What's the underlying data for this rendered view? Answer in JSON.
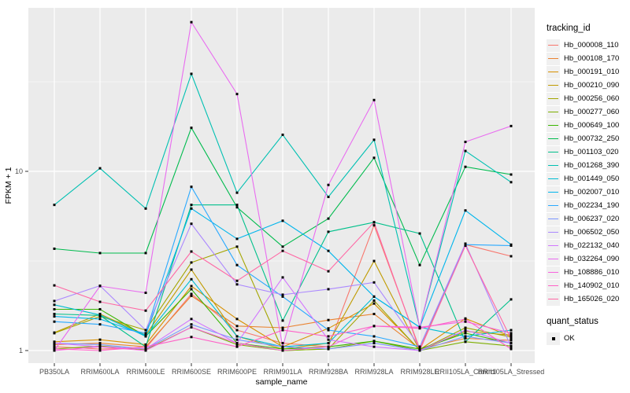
{
  "figure": {
    "legend": {
      "tracking_title": "tracking_id",
      "quant_title": "quant_status",
      "quant_items": [
        {
          "label": "OK"
        }
      ]
    },
    "colors": {
      "panel_bg": "#EBEBEB",
      "grid": "#FFFFFF",
      "point": "#000000",
      "tick_text": "#4D4D4D",
      "tick_mark": "#333333"
    }
  },
  "chart_data": {
    "type": "line",
    "title": "",
    "xlabel": "sample_name",
    "ylabel": "FPKM + 1",
    "y_scale": "log10",
    "ylim": [
      0.85,
      81
    ],
    "y_ticks": [
      1,
      10
    ],
    "y_minor_ticks": [
      3.162,
      31.62
    ],
    "grid": true,
    "legend_position": "right",
    "point_shape": "black-square",
    "quant_status": "OK",
    "categories": [
      "PB350LA",
      "RRIM600LA",
      "RRIM600LE",
      "RRIM600SE",
      "RRIM600PE",
      "RRIM901LA",
      "RRIM928BA",
      "RRIM928LA",
      "RRIM928LE",
      "RRII105LA_Control",
      "RRII105LA_Stressed"
    ],
    "series": [
      {
        "name": "Hb_000008_110",
        "color": "#F8766D",
        "values": [
          1.05,
          1.02,
          1.03,
          2.07,
          1.3,
          1.1,
          1.05,
          5.0,
          1.02,
          3.9,
          3.36
        ]
      },
      {
        "name": "Hb_000108_170",
        "color": "#EA8331",
        "values": [
          1.08,
          1.1,
          1.05,
          2.02,
          1.37,
          1.34,
          1.48,
          1.6,
          1.02,
          1.17,
          1.14
        ]
      },
      {
        "name": "Hb_000191_010",
        "color": "#D89000",
        "values": [
          1.12,
          1.15,
          1.08,
          2.29,
          1.5,
          1.05,
          1.33,
          1.83,
          1.01,
          1.51,
          1.2
        ]
      },
      {
        "name": "Hb_000210_090",
        "color": "#C09B00",
        "values": [
          1.26,
          1.6,
          1.22,
          2.83,
          1.2,
          1.02,
          1.1,
          3.16,
          1.0,
          1.28,
          1.22
        ]
      },
      {
        "name": "Hb_000256_060",
        "color": "#A3A500",
        "values": [
          1.25,
          1.55,
          1.3,
          3.1,
          3.8,
          1.0,
          1.02,
          1.9,
          1.0,
          1.34,
          1.19
        ]
      },
      {
        "name": "Hb_000277_060",
        "color": "#7CAE00",
        "values": [
          1.02,
          1.06,
          1.01,
          1.35,
          1.08,
          1.0,
          1.02,
          1.13,
          1.0,
          1.12,
          1.06
        ]
      },
      {
        "name": "Hb_000649_100",
        "color": "#39B600",
        "values": [
          1.7,
          1.7,
          1.2,
          2.2,
          1.1,
          1.02,
          1.05,
          1.13,
          1.02,
          1.25,
          1.1
        ]
      },
      {
        "name": "Hb_000732_250",
        "color": "#00BB4E",
        "values": [
          3.7,
          3.5,
          3.5,
          17.5,
          6.3,
          3.8,
          5.45,
          11.9,
          3.0,
          10.6,
          9.6
        ]
      },
      {
        "name": "Hb_001103_020",
        "color": "#00C08B",
        "values": [
          1.6,
          1.57,
          1.05,
          6.5,
          6.5,
          1.47,
          4.6,
          5.2,
          4.5,
          1.12,
          1.93
        ]
      },
      {
        "name": "Hb_001268_390",
        "color": "#00C0B2",
        "values": [
          6.5,
          10.4,
          6.2,
          35.0,
          7.6,
          16.0,
          7.2,
          15.0,
          1.35,
          13.0,
          8.7
        ]
      },
      {
        "name": "Hb_001449_050",
        "color": "#00BDD2",
        "values": [
          1.8,
          1.58,
          1.2,
          2.5,
          1.2,
          1.05,
          1.1,
          2.0,
          1.35,
          1.2,
          1.3
        ]
      },
      {
        "name": "Hb_002007_010",
        "color": "#00B5EC",
        "values": [
          1.55,
          1.5,
          1.22,
          6.2,
          4.2,
          5.3,
          3.6,
          2.0,
          1.35,
          6.05,
          3.9
        ]
      },
      {
        "name": "Hb_002234_190",
        "color": "#29A9FF",
        "values": [
          1.45,
          1.4,
          1.25,
          8.2,
          3.0,
          2.0,
          1.3,
          1.2,
          1.05,
          3.9,
          3.85
        ]
      },
      {
        "name": "Hb_006237_020",
        "color": "#7C96FF",
        "values": [
          1.1,
          1.08,
          1.02,
          1.4,
          1.15,
          1.05,
          1.02,
          1.1,
          1.0,
          1.2,
          1.1
        ]
      },
      {
        "name": "Hb_006502_050",
        "color": "#AB88FF",
        "values": [
          1.89,
          2.3,
          1.3,
          5.1,
          2.34,
          2.05,
          2.2,
          2.4,
          1.05,
          3.95,
          1.05
        ]
      },
      {
        "name": "Hb_022132_040",
        "color": "#D277FF",
        "values": [
          1.1,
          1.05,
          1.02,
          1.5,
          1.1,
          2.56,
          1.15,
          1.05,
          1.0,
          1.3,
          1.1
        ]
      },
      {
        "name": "Hb_032264_090",
        "color": "#E96BF0",
        "values": [
          1.0,
          2.29,
          2.1,
          68.0,
          27.0,
          1.05,
          8.4,
          25.0,
          1.35,
          14.6,
          17.9
        ]
      },
      {
        "name": "Hb_108886_010",
        "color": "#F863DF",
        "values": [
          1.0,
          1.05,
          1.0,
          1.35,
          1.1,
          1.0,
          1.05,
          1.37,
          1.35,
          1.45,
          1.25
        ]
      },
      {
        "name": "Hb_140902_010",
        "color": "#FF61C7",
        "values": [
          1.02,
          1.0,
          1.05,
          1.19,
          1.05,
          1.3,
          1.2,
          1.37,
          1.33,
          1.5,
          1.02
        ]
      },
      {
        "name": "Hb_165026_020",
        "color": "#FF68A5",
        "values": [
          2.31,
          1.87,
          1.67,
          3.57,
          2.45,
          3.6,
          2.77,
          5.2,
          1.0,
          3.85,
          1.16
        ]
      }
    ]
  }
}
